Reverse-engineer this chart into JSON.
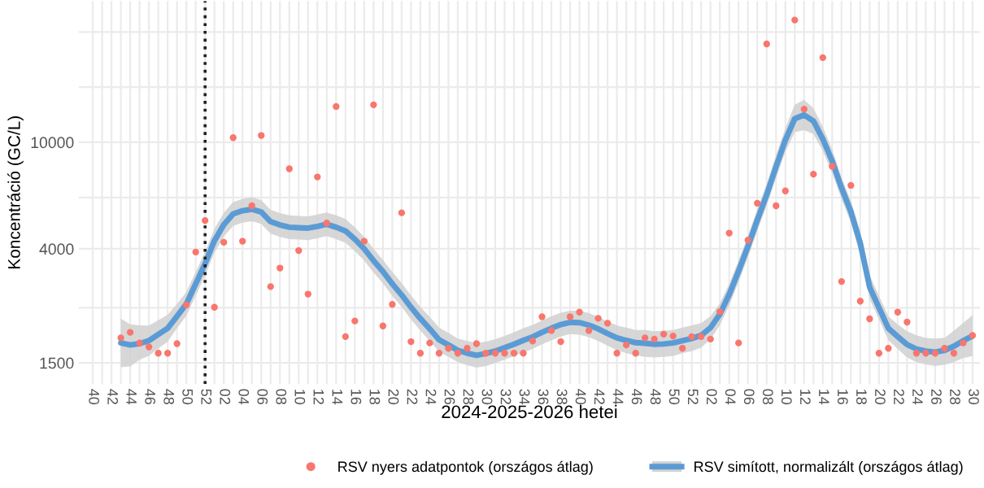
{
  "chart_data": {
    "type": "scatter",
    "xlabel": "2024-2025-2026 hetei",
    "ylabel": "Koncentráció (GC/L)",
    "log": "y",
    "grid": true,
    "legend": "bottom",
    "marker": "circle",
    "categories": [
      "40",
      null,
      "42",
      null,
      "44",
      null,
      "46",
      null,
      "48",
      null,
      "50",
      null,
      "52",
      null,
      "02",
      null,
      "04",
      null,
      "06",
      null,
      "08",
      null,
      "10",
      null,
      "12",
      null,
      "14",
      null,
      "16",
      null,
      "18",
      null,
      "20",
      null,
      "22",
      null,
      "24",
      null,
      "26",
      null,
      "28",
      null,
      "30",
      null,
      "32",
      null,
      "34",
      null,
      "36",
      null,
      "38",
      null,
      "40",
      null,
      "42",
      null,
      "44",
      null,
      "46",
      null,
      "48",
      null,
      "50",
      null,
      "52",
      null,
      "02",
      null,
      "04",
      null,
      "06",
      null,
      "08",
      null,
      "10",
      null,
      "12",
      null,
      "14",
      null,
      "16",
      null,
      "18",
      null,
      "20",
      null,
      "22",
      null,
      "24",
      null,
      "26",
      null,
      "28",
      null,
      "30"
    ],
    "ylim": [
      1250,
      33700
    ],
    "ref_lines": [
      {
        "axis": "x",
        "value": "52",
        "label": null,
        "color": "#222222",
        "line_style": "dotted"
      }
    ],
    "yticks": [
      1500,
      {
        "value": 2410,
        "label": null
      },
      4000,
      {
        "value": 6220,
        "label": null
      },
      10000,
      {
        "value": 16070,
        "label": null
      },
      {
        "value": 25800,
        "label": null
      }
    ],
    "series": [
      {
        "name": "RSV nyers adatpontok (országos átlag)",
        "color": "#f8766d",
        "values": [
          null,
          null,
          null,
          1860,
          1950,
          1780,
          1720,
          1630,
          1630,
          1770,
          2470,
          3890,
          5100,
          2420,
          4230,
          10400,
          4270,
          5790,
          10600,
          2890,
          3390,
          7960,
          3940,
          2710,
          7420,
          4990,
          13600,
          1880,
          2150,
          4270,
          13800,
          2060,
          2480,
          5450,
          1800,
          1630,
          1780,
          1630,
          1700,
          1630,
          1700,
          1770,
          1630,
          1630,
          1630,
          1630,
          1630,
          1810,
          2230,
          1980,
          1800,
          2230,
          2320,
          1980,
          2200,
          2110,
          1630,
          1750,
          1630,
          1860,
          1840,
          1920,
          1890,
          1700,
          1880,
          1880,
          1840,
          2330,
          4580,
          1780,
          4310,
          5920,
          23300,
          5790,
          6580,
          28600,
          13300,
          7600,
          20700,
          8130,
          3020,
          6900,
          2550,
          2190,
          1630,
          1700,
          2320,
          2130,
          1630,
          1630,
          1630,
          1700,
          1630,
          1780,
          1900
        ]
      },
      {
        "name": "RSV simított, normalizált (országos átlag)",
        "type": "line",
        "color": "#5b9bd5",
        "marker": "none",
        "line_style": "solid",
        "values": [
          null,
          null,
          null,
          1781,
          1750,
          1770,
          1815,
          1915,
          2020,
          2240,
          2490,
          2960,
          3520,
          4290,
          4920,
          5400,
          5550,
          5620,
          5491,
          5050,
          4910,
          4815,
          4795,
          4780,
          4850,
          4940,
          4815,
          4665,
          4345,
          4000,
          3613,
          3290,
          2960,
          2690,
          2420,
          2195,
          2010,
          1830,
          1750,
          1670,
          1630,
          1600,
          1625,
          1660,
          1710,
          1760,
          1820,
          1875,
          1950,
          2020,
          2085,
          2125,
          2120,
          2075,
          2010,
          1930,
          1860,
          1820,
          1785,
          1775,
          1760,
          1765,
          1780,
          1815,
          1850,
          1900,
          2030,
          2280,
          2700,
          3300,
          4080,
          5120,
          6360,
          8100,
          10200,
          12240,
          12650,
          11995,
          10280,
          8500,
          6750,
          5500,
          4200,
          2880,
          2410,
          2020,
          1880,
          1755,
          1690,
          1660,
          1645,
          1670,
          1730,
          1815,
          1890
        ],
        "lower": [
          null,
          null,
          null,
          1445,
          1455,
          1540,
          1593,
          1700,
          1798,
          2020,
          2248,
          2670,
          3180,
          3870,
          4440,
          4870,
          5010,
          5070,
          4957,
          4560,
          4430,
          4350,
          4330,
          4310,
          4380,
          4460,
          4350,
          4210,
          3920,
          3610,
          3262,
          2970,
          2670,
          2430,
          2180,
          1980,
          1810,
          1650,
          1580,
          1510,
          1470,
          1440,
          1460,
          1500,
          1540,
          1590,
          1640,
          1690,
          1760,
          1820,
          1880,
          1920,
          1910,
          1870,
          1810,
          1740,
          1670,
          1630,
          1600,
          1580,
          1570,
          1580,
          1590,
          1630,
          1660,
          1710,
          1840,
          2070,
          2460,
          3000,
          3720,
          4660,
          5790,
          7330,
          9200,
          10900,
          11100,
          10728,
          9250,
          7680,
          6140,
          5000,
          3800,
          2600,
          2180,
          1823,
          1690,
          1570,
          1510,
          1480,
          1460,
          1475,
          1510,
          1564,
          1590
        ],
        "upper": [
          null,
          null,
          null,
          2196,
          2090,
          2070,
          2067,
          2165,
          2269,
          2490,
          2758,
          3280,
          3900,
          4750,
          5450,
          5980,
          6150,
          6230,
          6081,
          5590,
          5440,
          5330,
          5310,
          5290,
          5370,
          5470,
          5330,
          5170,
          4810,
          4430,
          4002,
          3640,
          3280,
          2980,
          2680,
          2430,
          2230,
          2030,
          1940,
          1850,
          1810,
          1780,
          1800,
          1840,
          1890,
          1950,
          2020,
          2080,
          2160,
          2240,
          2310,
          2350,
          2350,
          2300,
          2230,
          2140,
          2070,
          2030,
          1990,
          1990,
          1970,
          1980,
          1990,
          2030,
          2070,
          2110,
          2240,
          2500,
          2960,
          3620,
          4480,
          5620,
          6980,
          8950,
          11300,
          13800,
          14400,
          13413,
          11400,
          9400,
          7400,
          6040,
          4650,
          3190,
          2670,
          2237,
          2090,
          1970,
          1900,
          1860,
          1850,
          1860,
          1980,
          2116,
          2260
        ]
      }
    ]
  }
}
